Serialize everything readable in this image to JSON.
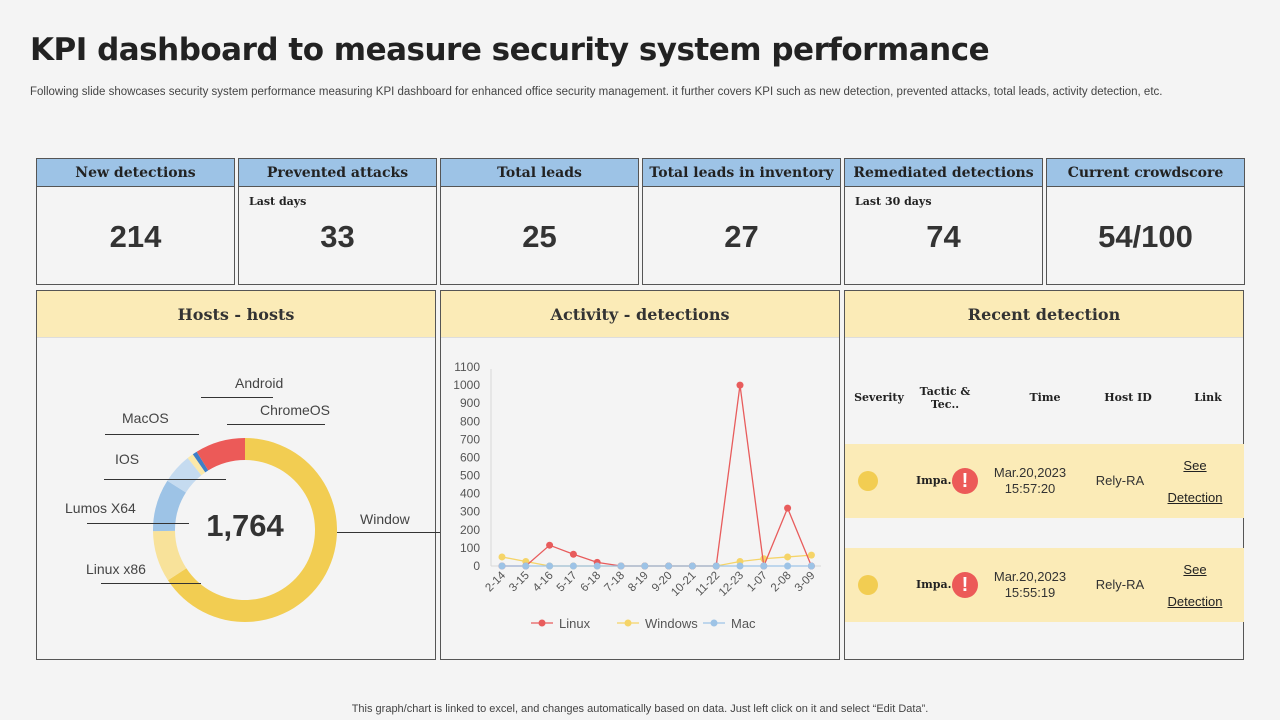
{
  "title": "KPI dashboard to measure security system performance",
  "subtitle": "Following slide showcases security system performance measuring KPI dashboard for enhanced office security management. it further covers KPI such as new detection, prevented attacks, total leads, activity detection, etc.",
  "kpis": [
    {
      "label": "New detections",
      "sub": "",
      "value": "214"
    },
    {
      "label": "Prevented attacks",
      "sub": "Last days",
      "value": "33"
    },
    {
      "label": "Total leads",
      "sub": "",
      "value": "25"
    },
    {
      "label": "Total leads in inventory",
      "sub": "",
      "value": "27"
    },
    {
      "label": "Remediated detections",
      "sub": "Last 30 days",
      "value": "74"
    },
    {
      "label": "Current crowdscore",
      "sub": "",
      "value": "54/100"
    }
  ],
  "colors": {
    "kpi_header": "#9dc3e6",
    "panel_header": "#fbebb7",
    "linux": "#e85c5c",
    "windows": "#f5d468",
    "mac": "#9dc3e6"
  },
  "hosts": {
    "title": "Hosts - hosts",
    "total": "1,764"
  },
  "activity": {
    "title": "Activity - detections"
  },
  "recent": {
    "title": "Recent detection",
    "headers": [
      "Severity",
      "Tactic & Tec..",
      "Time",
      "Host ID",
      "Link"
    ],
    "rows": [
      {
        "severity": "medium",
        "tactic": "Impa..",
        "date": "Mar.20,2023",
        "time": "15:57:20",
        "host": "Rely-RA",
        "link1": "See",
        "link2": "Detection"
      },
      {
        "severity": "medium",
        "tactic": "Impa..",
        "date": "Mar.20,2023",
        "time": "15:55:19",
        "host": "Rely-RA",
        "link1": "See",
        "link2": "Detection"
      }
    ]
  },
  "footer": "This graph/chart is linked to excel,  and changes automatically based on data. Just left click on it and select “Edit Data”.",
  "chart_data": [
    {
      "type": "pie",
      "donut": true,
      "center_label": "1,764",
      "categories": [
        "Window",
        "Linux x86",
        "Lumos X64",
        "IOS",
        "MacOS",
        "Android",
        "ChromeOS"
      ],
      "values": [
        65.8,
        9.0,
        9.2,
        5.3,
        1.1,
        0.8,
        8.8
      ],
      "colors": [
        "#f2cd52",
        "#f8e29a",
        "#9dc3e6",
        "#c5dbf0",
        "#fbe9a9",
        "#3f7fc7",
        "#ec5a58"
      ]
    },
    {
      "type": "line",
      "x": [
        "2-14",
        "3-15",
        "4-16",
        "5-17",
        "6-18",
        "7-18",
        "8-19",
        "9-20",
        "10-21",
        "11-22",
        "12-23",
        "1-07",
        "2-08",
        "3-09"
      ],
      "ylim": [
        0,
        1100
      ],
      "yticks": [
        0,
        100,
        200,
        300,
        400,
        500,
        600,
        700,
        800,
        900,
        1000,
        1100
      ],
      "legend": "bottom",
      "series": [
        {
          "name": "Linux",
          "color": "#e85c5c",
          "values": [
            0,
            0,
            115,
            65,
            20,
            0,
            0,
            0,
            0,
            0,
            1000,
            0,
            320,
            0
          ]
        },
        {
          "name": "Windows",
          "color": "#f5d468",
          "values": [
            50,
            25,
            0,
            0,
            0,
            0,
            0,
            0,
            0,
            0,
            25,
            40,
            50,
            60
          ]
        },
        {
          "name": "Mac",
          "color": "#9dc3e6",
          "values": [
            0,
            0,
            0,
            0,
            0,
            0,
            0,
            0,
            0,
            0,
            0,
            0,
            0,
            0
          ]
        }
      ]
    }
  ]
}
